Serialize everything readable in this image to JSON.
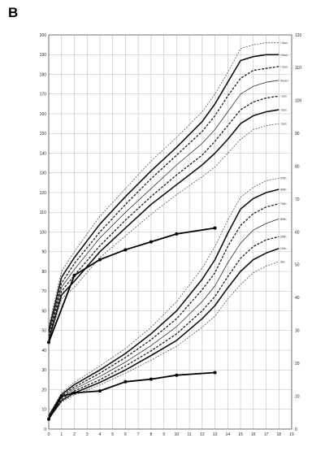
{
  "panel_label": "B",
  "chart_data": {
    "type": "line",
    "title": "",
    "xlabel": "",
    "ylabel": "",
    "grid": true,
    "x_ticks": [
      0,
      1,
      2,
      3,
      4,
      5,
      6,
      7,
      8,
      9,
      10,
      11,
      12,
      13,
      14,
      15,
      16,
      17,
      18,
      19
    ],
    "xlim": [
      0,
      19
    ],
    "left_axis": {
      "ylim": [
        0,
        200
      ],
      "ticks": [
        0,
        10,
        20,
        30,
        40,
        50,
        60,
        70,
        80,
        90,
        100,
        110,
        120,
        130,
        140,
        150,
        160,
        170,
        180,
        190,
        200
      ],
      "applies_to": "height_panel"
    },
    "right_axis": {
      "ylim": [
        0,
        120
      ],
      "ticks": [
        0,
        10,
        20,
        30,
        40,
        50,
        60,
        70,
        80,
        90,
        100,
        110,
        120
      ],
      "applies_to": "weight_panel"
    },
    "height_centiles": [
      {
        "name": "+3s",
        "label": "+3sd.",
        "x": [
          0,
          1,
          2,
          4,
          6,
          8,
          10,
          12,
          13,
          14,
          15,
          16,
          17,
          18
        ],
        "y": [
          52,
          80,
          90,
          108,
          122,
          136,
          148,
          161,
          170,
          181,
          193,
          195,
          196,
          196
        ]
      },
      {
        "name": "+2s",
        "label": "+2sd.",
        "x": [
          0,
          1,
          2,
          4,
          6,
          8,
          10,
          12,
          13,
          14,
          15,
          16,
          17,
          18
        ],
        "y": [
          50,
          77,
          87,
          104,
          118,
          131,
          143,
          156,
          165,
          176,
          187,
          189,
          190,
          190
        ]
      },
      {
        "name": "+1s",
        "label": "+1sd.",
        "x": [
          0,
          1,
          2,
          4,
          6,
          8,
          10,
          12,
          13,
          14,
          15,
          16,
          17,
          18
        ],
        "y": [
          49,
          74,
          84,
          100,
          114,
          127,
          139,
          151,
          159,
          169,
          178,
          182,
          183,
          184
        ]
      },
      {
        "name": "mean",
        "label": "mean",
        "x": [
          0,
          1,
          2,
          4,
          6,
          8,
          10,
          12,
          13,
          14,
          15,
          16,
          17,
          18
        ],
        "y": [
          48,
          72,
          81,
          97,
          110,
          122,
          134,
          145,
          152,
          161,
          170,
          174,
          176,
          177
        ]
      },
      {
        "name": "-1s",
        "label": "-1sd.",
        "x": [
          0,
          1,
          2,
          4,
          6,
          8,
          10,
          12,
          13,
          14,
          15,
          16,
          17,
          18
        ],
        "y": [
          47,
          70,
          78,
          93,
          106,
          118,
          129,
          139,
          146,
          154,
          162,
          166,
          168,
          169
        ]
      },
      {
        "name": "-2s",
        "label": "-2sd.",
        "x": [
          0,
          1,
          2,
          4,
          6,
          8,
          10,
          12,
          13,
          14,
          15,
          16,
          17,
          18
        ],
        "y": [
          45,
          68,
          75,
          90,
          102,
          114,
          124,
          134,
          140,
          147,
          155,
          159,
          161,
          162
        ]
      },
      {
        "name": "-3s",
        "label": "-3sd.",
        "x": [
          0,
          1,
          2,
          4,
          6,
          8,
          10,
          12,
          13,
          14,
          15,
          16,
          17,
          18
        ],
        "y": [
          44,
          66,
          72,
          87,
          98,
          109,
          119,
          128,
          133,
          140,
          147,
          152,
          154,
          155
        ]
      }
    ],
    "weight_centiles": [
      {
        "name": "97th",
        "label": "97th",
        "x": [
          0,
          1,
          2,
          4,
          6,
          8,
          10,
          12,
          13,
          14,
          15,
          16,
          17,
          18
        ],
        "y": [
          4.2,
          11,
          14.2,
          19.2,
          24.5,
          31,
          38.8,
          49,
          55.6,
          63.6,
          70.6,
          73.6,
          75.6,
          76.4
        ]
      },
      {
        "name": "90th",
        "label": "90th",
        "x": [
          0,
          1,
          2,
          4,
          6,
          8,
          10,
          12,
          13,
          14,
          15,
          16,
          17,
          18
        ],
        "y": [
          4,
          10.5,
          13.5,
          18,
          23,
          29,
          36,
          45.6,
          51.6,
          59.6,
          67,
          70.2,
          72,
          73
        ]
      },
      {
        "name": "75th",
        "label": "75th",
        "x": [
          0,
          1,
          2,
          4,
          6,
          8,
          10,
          12,
          13,
          14,
          15,
          16,
          17,
          18
        ],
        "y": [
          3.8,
          10,
          12.8,
          17,
          21.8,
          27.2,
          33.6,
          42.4,
          47.6,
          55.6,
          62,
          65.6,
          67.6,
          68.6
        ]
      },
      {
        "name": "50th",
        "label": "50th",
        "x": [
          0,
          1,
          2,
          4,
          6,
          8,
          10,
          12,
          13,
          14,
          15,
          16,
          17,
          18
        ],
        "y": [
          3.6,
          9.6,
          12.2,
          16,
          20.4,
          25.4,
          31.2,
          38.8,
          43.6,
          50.6,
          56.6,
          60.6,
          62.6,
          64
        ]
      },
      {
        "name": "25th",
        "label": "25th",
        "x": [
          0,
          1,
          2,
          4,
          6,
          8,
          10,
          12,
          13,
          14,
          15,
          16,
          17,
          18
        ],
        "y": [
          3.4,
          9.1,
          11.6,
          15,
          19.2,
          23.8,
          29,
          36,
          40.4,
          46.4,
          52,
          55.6,
          57.6,
          58.6
        ]
      },
      {
        "name": "10th",
        "label": "10th",
        "x": [
          0,
          1,
          2,
          4,
          6,
          8,
          10,
          12,
          13,
          14,
          15,
          16,
          17,
          18
        ],
        "y": [
          3.2,
          8.6,
          11,
          14.2,
          18,
          22.4,
          27,
          33.6,
          37.6,
          43,
          48,
          51.6,
          53.6,
          55
        ]
      },
      {
        "name": "3rd",
        "label": "3rd",
        "x": [
          0,
          1,
          2,
          4,
          6,
          8,
          10,
          12,
          13,
          14,
          15,
          16,
          17,
          18
        ],
        "y": [
          3,
          8.2,
          10.4,
          13.4,
          17,
          21,
          25.2,
          31,
          34.4,
          39.6,
          44,
          47.6,
          49.6,
          51
        ]
      }
    ],
    "patient_height": {
      "x": [
        0,
        2,
        4,
        6,
        8,
        10,
        13
      ],
      "y": [
        44,
        78,
        86,
        91,
        95,
        99,
        102
      ]
    },
    "patient_weight": {
      "x": [
        0,
        1,
        2,
        4,
        6,
        8,
        10,
        13
      ],
      "y": [
        3,
        10,
        11,
        11.6,
        14.4,
        15.2,
        16.4,
        17.2
      ]
    }
  }
}
